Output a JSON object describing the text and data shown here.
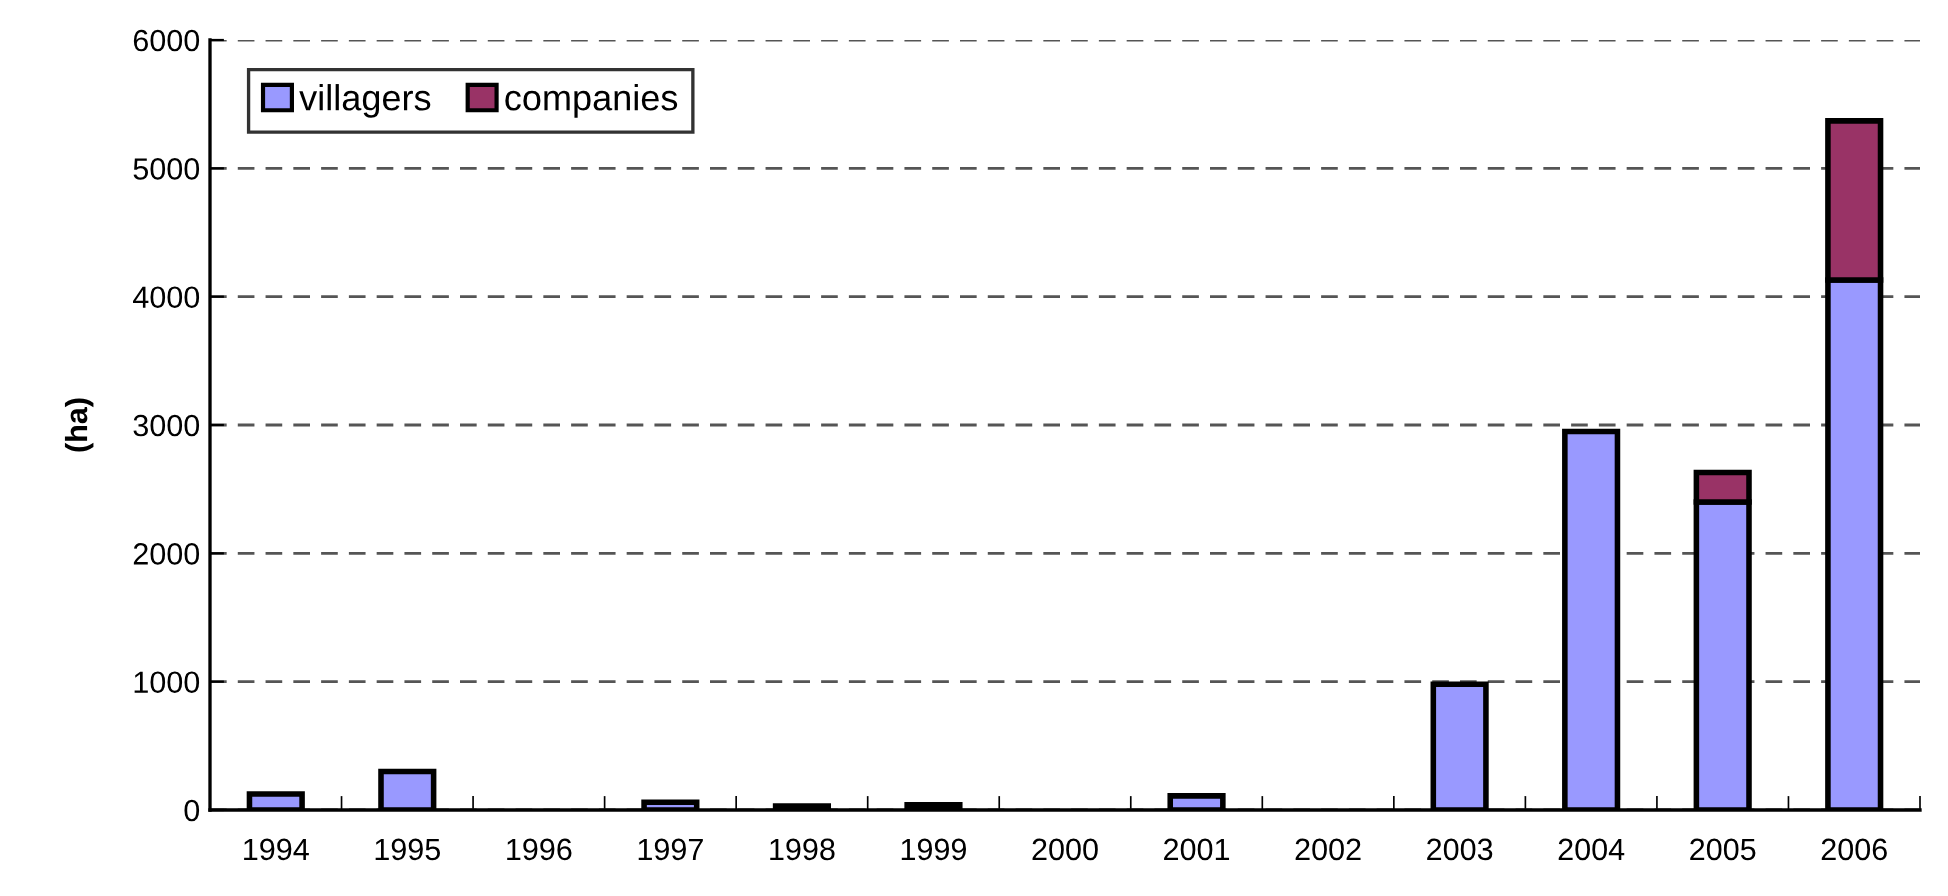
{
  "chart_data": {
    "type": "bar",
    "stacked": true,
    "ylabel": "(ha)",
    "categories": [
      "1994",
      "1995",
      "1996",
      "1997",
      "1998",
      "1999",
      "2000",
      "2001",
      "2002",
      "2003",
      "2004",
      "2005",
      "2006"
    ],
    "series": [
      {
        "name": "villagers",
        "color": "#9999ff",
        "values": [
          125,
          300,
          0,
          60,
          30,
          40,
          0,
          110,
          0,
          980,
          2950,
          2400,
          4130
        ]
      },
      {
        "name": "companies",
        "color": "#993366",
        "values": [
          0,
          0,
          0,
          0,
          0,
          0,
          0,
          0,
          0,
          0,
          0,
          230,
          1240
        ]
      }
    ],
    "ylim": [
      0,
      6000
    ],
    "yticks": [
      0,
      1000,
      2000,
      3000,
      4000,
      5000,
      6000
    ],
    "grid": "y",
    "legend": "top left"
  }
}
